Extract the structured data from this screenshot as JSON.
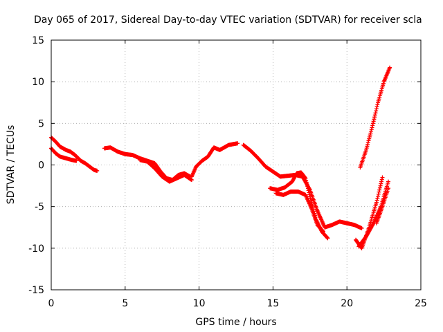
{
  "chart_data": {
    "type": "scatter",
    "title": "Day 065 of 2017, Sidereal Day-to-day VTEC variation (SDTVAR) for receiver scla",
    "xlabel": "GPS time / hours",
    "ylabel": "SDTVAR / TECUs",
    "xlim": [
      0,
      25
    ],
    "ylim": [
      -15,
      15
    ],
    "xticks": [
      0,
      5,
      10,
      15,
      20,
      25
    ],
    "yticks": [
      -15,
      -10,
      -5,
      0,
      5,
      10,
      15
    ],
    "grid": true,
    "marker": "+",
    "colors": {
      "series": "#ff0000",
      "axis": "#000000",
      "grid": "#a0a0a0"
    },
    "series": [
      {
        "x": [
          0,
          0.3,
          0.6,
          1.0,
          1.3,
          1.6,
          2.0,
          2.3,
          2.6,
          2.9,
          3.1
        ],
        "y": [
          3.3,
          2.8,
          2.2,
          1.8,
          1.6,
          1.2,
          0.5,
          0.2,
          -0.2,
          -0.6,
          -0.7
        ]
      },
      {
        "x": [
          0,
          0.3,
          0.6,
          1.0,
          1.4,
          1.7
        ],
        "y": [
          2.0,
          1.4,
          1.0,
          0.8,
          0.6,
          0.5
        ]
      },
      {
        "x": [
          3.6,
          4.0,
          4.5,
          5.0,
          5.5,
          6.0,
          6.5,
          7.0,
          7.4,
          7.8,
          8.2,
          8.6,
          9.0,
          9.4
        ],
        "y": [
          2.0,
          2.1,
          1.6,
          1.3,
          1.2,
          0.8,
          0.5,
          0.2,
          -0.8,
          -1.6,
          -1.8,
          -1.2,
          -1.0,
          -1.4
        ]
      },
      {
        "x": [
          6.0,
          6.5,
          7.0,
          7.5,
          8.0,
          8.5,
          9.0,
          9.5
        ],
        "y": [
          0.6,
          0.4,
          -0.4,
          -1.4,
          -2.0,
          -1.6,
          -1.2,
          -1.8
        ]
      },
      {
        "x": [
          9.5,
          9.8,
          10.2,
          10.6,
          11.0,
          11.4,
          12.0,
          12.6
        ],
        "y": [
          -1.4,
          -0.2,
          0.5,
          1.0,
          2.1,
          1.8,
          2.4,
          2.6
        ]
      },
      {
        "x": [
          13.0,
          13.5,
          14.0,
          14.5,
          15.0,
          15.5,
          16.0,
          16.5,
          17.0,
          17.5,
          18.0,
          18.5,
          19.0,
          19.5,
          20.0,
          20.5,
          21.0
        ],
        "y": [
          2.4,
          1.7,
          0.8,
          -0.2,
          -0.8,
          -1.4,
          -1.3,
          -1.2,
          -1.4,
          -3.0,
          -5.5,
          -7.5,
          -7.2,
          -6.8,
          -7.0,
          -7.2,
          -7.6
        ]
      },
      {
        "x": [
          14.8,
          15.3,
          15.8,
          16.3,
          16.6,
          16.9,
          17.2,
          17.5,
          17.9,
          18.3,
          18.7
        ],
        "y": [
          -2.8,
          -3.0,
          -2.7,
          -2.0,
          -1.0,
          -0.9,
          -1.6,
          -3.8,
          -6.5,
          -8.0,
          -8.8
        ]
      },
      {
        "x": [
          15.2,
          15.7,
          16.2,
          16.7,
          17.2,
          17.6,
          18.0,
          18.4
        ],
        "y": [
          -3.4,
          -3.6,
          -3.2,
          -3.2,
          -3.6,
          -5.2,
          -7.2,
          -8.0
        ]
      },
      {
        "x": [
          20.6,
          21.0,
          21.5,
          22.0,
          22.4
        ],
        "y": [
          -9.0,
          -10.0,
          -7.5,
          -4.5,
          -1.5
        ]
      },
      {
        "x": [
          20.8,
          21.3,
          21.8,
          22.3,
          22.8
        ],
        "y": [
          -9.8,
          -8.6,
          -7.0,
          -5.0,
          -2.0
        ]
      },
      {
        "x": [
          22.0,
          22.4,
          22.8
        ],
        "y": [
          -7.0,
          -5.0,
          -2.8
        ]
      },
      {
        "x": [
          20.9,
          21.3,
          21.7,
          22.1,
          22.5,
          22.9
        ],
        "y": [
          -0.3,
          1.8,
          4.5,
          7.5,
          10.0,
          11.7
        ]
      }
    ]
  }
}
